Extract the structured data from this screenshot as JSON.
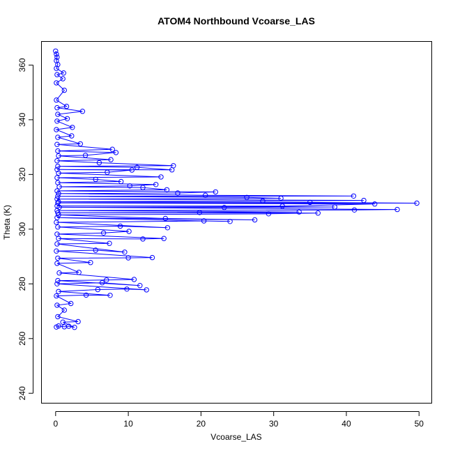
{
  "chart_data": {
    "type": "scatter",
    "title": "ATOM4 Northbound Vcoarse_LAS",
    "xlabel": "Vcoarse_LAS",
    "ylabel": "Theta (K)",
    "xlim": [
      -1.9,
      51.7
    ],
    "ylim": [
      236.5,
      368.5
    ],
    "x_ticks": [
      0,
      10,
      20,
      30,
      40,
      50
    ],
    "y_ticks": [
      240,
      260,
      280,
      300,
      320,
      340,
      360
    ],
    "grid": false,
    "legend": "none",
    "style": {
      "series_color": "#0000ff",
      "marker": "open-circle",
      "connect_points": true
    },
    "series": [
      {
        "points": [
          [
            0.1,
            264.2
          ],
          [
            0.4,
            264.6
          ],
          [
            1.2,
            264.3
          ],
          [
            1.8,
            264.5
          ],
          [
            2.6,
            264.1
          ],
          [
            1.0,
            266.0
          ],
          [
            3.1,
            266.2
          ],
          [
            0.3,
            268.0
          ],
          [
            1.2,
            270.4
          ],
          [
            0.2,
            272.2
          ],
          [
            2.1,
            272.8
          ],
          [
            0.1,
            275.6
          ],
          [
            4.2,
            275.9
          ],
          [
            7.5,
            275.8
          ],
          [
            0.4,
            277.2
          ],
          [
            5.8,
            277.9
          ],
          [
            9.8,
            278.1
          ],
          [
            12.5,
            277.8
          ],
          [
            0.2,
            280.0
          ],
          [
            6.4,
            280.4
          ],
          [
            11.6,
            279.4
          ],
          [
            0.3,
            281.2
          ],
          [
            7.0,
            281.4
          ],
          [
            10.8,
            281.6
          ],
          [
            0.5,
            284.0
          ],
          [
            3.2,
            284.2
          ],
          [
            0.2,
            287.5
          ],
          [
            4.8,
            287.8
          ],
          [
            0.3,
            289.4
          ],
          [
            10.0,
            289.5
          ],
          [
            13.3,
            289.6
          ],
          [
            0.1,
            292.0
          ],
          [
            5.5,
            292.3
          ],
          [
            9.5,
            291.6
          ],
          [
            0.2,
            294.6
          ],
          [
            7.4,
            294.8
          ],
          [
            0.4,
            296.6
          ],
          [
            12.0,
            296.4
          ],
          [
            14.9,
            296.6
          ],
          [
            0.2,
            298.2
          ],
          [
            6.6,
            298.6
          ],
          [
            10.1,
            299.2
          ],
          [
            0.3,
            300.8
          ],
          [
            8.9,
            301.1
          ],
          [
            15.4,
            300.5
          ],
          [
            0.1,
            302.5
          ],
          [
            20.4,
            303.0
          ],
          [
            24.0,
            302.8
          ],
          [
            0.2,
            304.2
          ],
          [
            27.4,
            303.4
          ],
          [
            15.1,
            303.9
          ],
          [
            0.4,
            305.2
          ],
          [
            29.3,
            305.6
          ],
          [
            36.1,
            305.9
          ],
          [
            0.3,
            306.0
          ],
          [
            19.8,
            306.1
          ],
          [
            33.5,
            306.3
          ],
          [
            0.2,
            306.8
          ],
          [
            41.1,
            307.0
          ],
          [
            47.0,
            307.2
          ],
          [
            0.5,
            308.0
          ],
          [
            23.2,
            307.9
          ],
          [
            38.4,
            308.1
          ],
          [
            0.2,
            308.5
          ],
          [
            31.2,
            308.4
          ],
          [
            43.9,
            309.2
          ],
          [
            0.3,
            309.6
          ],
          [
            49.7,
            309.5
          ],
          [
            35.0,
            309.8
          ],
          [
            0.4,
            310.0
          ],
          [
            28.5,
            310.3
          ],
          [
            42.4,
            310.5
          ],
          [
            0.2,
            311.0
          ],
          [
            31.0,
            311.3
          ],
          [
            26.3,
            311.6
          ],
          [
            0.3,
            312.0
          ],
          [
            41.0,
            312.1
          ],
          [
            20.6,
            312.4
          ],
          [
            0.4,
            313.0
          ],
          [
            16.8,
            313.2
          ],
          [
            22.0,
            313.6
          ],
          [
            0.2,
            314.0
          ],
          [
            15.3,
            314.4
          ],
          [
            12.0,
            315.2
          ],
          [
            0.5,
            315.5
          ],
          [
            10.2,
            315.8
          ],
          [
            13.8,
            316.3
          ],
          [
            0.3,
            317.0
          ],
          [
            9.0,
            317.4
          ],
          [
            5.5,
            318.2
          ],
          [
            0.2,
            318.8
          ],
          [
            14.5,
            319.1
          ],
          [
            0.4,
            320.5
          ],
          [
            7.1,
            320.8
          ],
          [
            10.5,
            321.6
          ],
          [
            0.2,
            321.8
          ],
          [
            16.0,
            321.7
          ],
          [
            11.2,
            322.6
          ],
          [
            0.3,
            323.0
          ],
          [
            16.2,
            323.2
          ],
          [
            6.0,
            324.3
          ],
          [
            0.2,
            325.0
          ],
          [
            7.6,
            325.4
          ],
          [
            0.4,
            326.8
          ],
          [
            4.1,
            327.0
          ],
          [
            8.3,
            328.0
          ],
          [
            0.3,
            328.6
          ],
          [
            7.8,
            329.2
          ],
          [
            0.2,
            331.0
          ],
          [
            3.4,
            331.2
          ],
          [
            0.3,
            333.6
          ],
          [
            2.2,
            334.1
          ],
          [
            0.1,
            336.4
          ],
          [
            2.3,
            337.2
          ],
          [
            0.2,
            339.5
          ],
          [
            1.6,
            340.4
          ],
          [
            0.3,
            342.0
          ],
          [
            3.7,
            343.1
          ],
          [
            0.2,
            344.4
          ],
          [
            1.5,
            344.9
          ],
          [
            0.1,
            347.2
          ],
          [
            1.2,
            350.8
          ],
          [
            0.1,
            353.5
          ],
          [
            1.0,
            355.0
          ],
          [
            0.2,
            356.5
          ],
          [
            1.1,
            357.1
          ],
          [
            0.1,
            358.8
          ],
          [
            0.3,
            360.2
          ],
          [
            0.1,
            361.6
          ],
          [
            0.2,
            362.9
          ],
          [
            0.1,
            364.0
          ],
          [
            0.0,
            365.1
          ]
        ]
      }
    ]
  }
}
